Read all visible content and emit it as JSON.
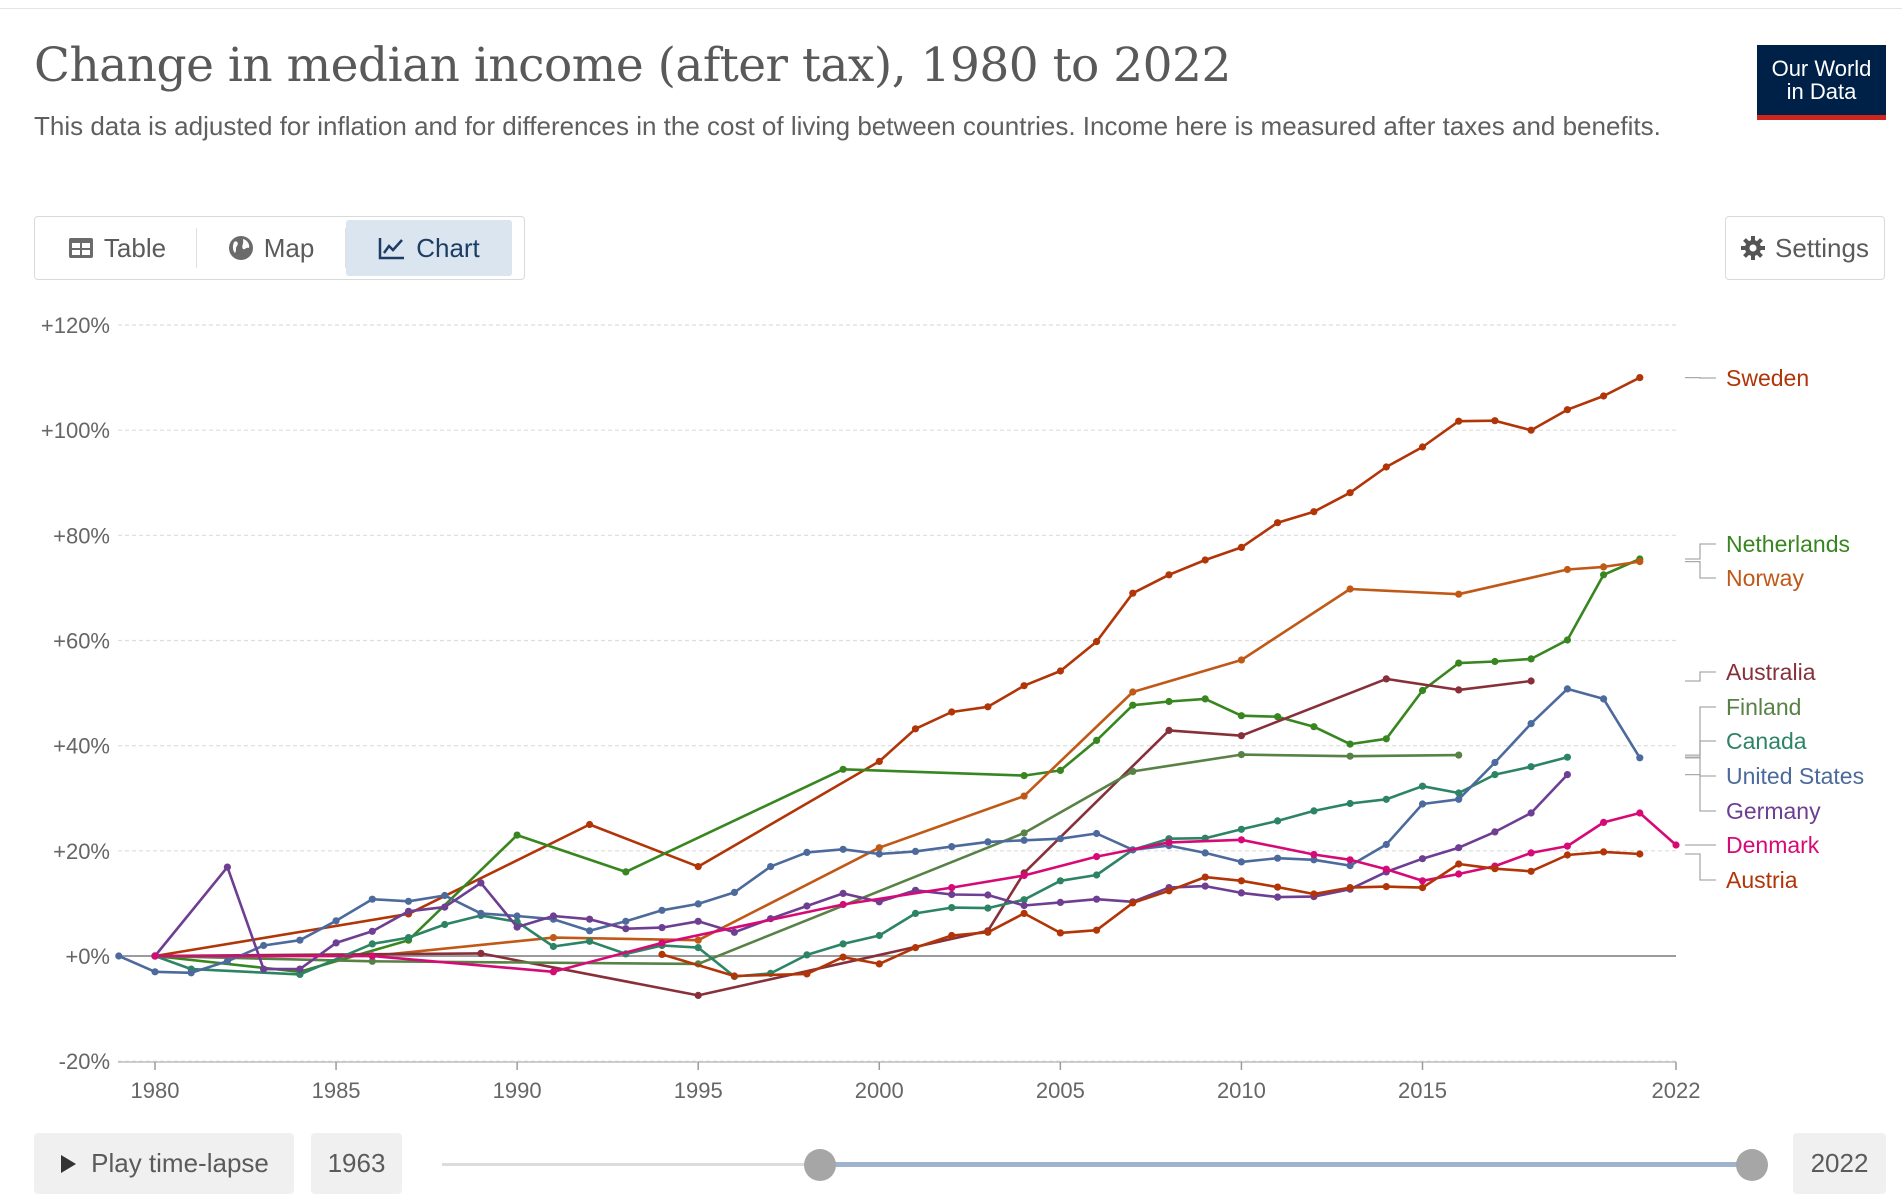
{
  "header": {
    "title": "Change in median income (after tax), 1980 to 2022",
    "subtitle": "This data is adjusted for inflation and for differences in the cost of living between countries. Income here is measured after taxes and benefits.",
    "logo_line1": "Our World",
    "logo_line2": "in Data"
  },
  "tabs": [
    {
      "label": "Table",
      "icon": "table-icon"
    },
    {
      "label": "Map",
      "icon": "globe-icon"
    },
    {
      "label": "Chart",
      "icon": "line-chart-icon",
      "active": true
    }
  ],
  "settings_label": "Settings",
  "controls": {
    "play_label": "Play time-lapse",
    "start_year": "1963",
    "end_year": "2022"
  },
  "colors": {
    "Sweden": "#b13507",
    "Netherlands": "#38861f",
    "Norway": "#c05917",
    "Australia": "#883039",
    "Finland": "#578145",
    "Canada": "#2c8465",
    "United States": "#4c6a9c",
    "Germany": "#6d3e91",
    "Denmark": "#d60a77",
    "Austria": "#b13507"
  },
  "chart_data": {
    "type": "line",
    "title": "Change in median income (after tax), 1980 to 2022",
    "ylim": [
      -20,
      120
    ],
    "xlim": [
      1980,
      2022
    ],
    "y_ticks": [
      -20,
      0,
      20,
      40,
      60,
      80,
      100,
      120
    ],
    "y_tick_labels": [
      "-20%",
      "+0%",
      "+20%",
      "+40%",
      "+60%",
      "+80%",
      "+100%",
      "+120%"
    ],
    "x_ticks": [
      1980,
      1985,
      1990,
      1995,
      2000,
      2005,
      2010,
      2015,
      2022
    ],
    "x_tick_labels": [
      "1980",
      "1985",
      "1990",
      "1995",
      "2000",
      "2005",
      "2010",
      "2015",
      "2022"
    ],
    "grid": "horizontal",
    "legend": "right",
    "series": [
      {
        "name": "Sweden",
        "points": [
          [
            1980,
            0
          ],
          [
            1987,
            8
          ],
          [
            1992,
            25
          ],
          [
            1995,
            17
          ],
          [
            2000,
            37
          ],
          [
            2001,
            43.2
          ],
          [
            2002,
            46.4
          ],
          [
            2003,
            47.4
          ],
          [
            2004,
            51.4
          ],
          [
            2005,
            54.2
          ],
          [
            2006,
            59.8
          ],
          [
            2007,
            69
          ],
          [
            2008,
            72.5
          ],
          [
            2009,
            75.3
          ],
          [
            2010,
            77.7
          ],
          [
            2011,
            82.4
          ],
          [
            2012,
            84.5
          ],
          [
            2013,
            88.1
          ],
          [
            2014,
            93
          ],
          [
            2015,
            96.8
          ],
          [
            2016,
            101.7
          ],
          [
            2017,
            101.8
          ],
          [
            2018,
            100
          ],
          [
            2019,
            103.9
          ],
          [
            2020,
            106.5
          ],
          [
            2021,
            110
          ]
        ]
      },
      {
        "name": "Netherlands",
        "points": [
          [
            1980,
            0
          ],
          [
            1984,
            -3
          ],
          [
            1987,
            3
          ],
          [
            1990,
            23
          ],
          [
            1993,
            16
          ],
          [
            1999,
            35.5
          ],
          [
            2004,
            34.3
          ],
          [
            2005,
            35.3
          ],
          [
            2006,
            41
          ],
          [
            2007,
            47.7
          ],
          [
            2008,
            48.4
          ],
          [
            2009,
            48.9
          ],
          [
            2010,
            45.7
          ],
          [
            2011,
            45.5
          ],
          [
            2012,
            43.6
          ],
          [
            2013,
            40.3
          ],
          [
            2014,
            41.3
          ],
          [
            2015,
            50.5
          ],
          [
            2016,
            55.7
          ],
          [
            2017,
            56
          ],
          [
            2018,
            56.5
          ],
          [
            2019,
            60.1
          ],
          [
            2020,
            72.5
          ],
          [
            2021,
            75.5
          ]
        ]
      },
      {
        "name": "Norway",
        "points": [
          [
            1980,
            0
          ],
          [
            1986,
            0
          ],
          [
            1991,
            3.5
          ],
          [
            1995,
            3
          ],
          [
            2000,
            20.6
          ],
          [
            2004,
            30.4
          ],
          [
            2007,
            50.2
          ],
          [
            2010,
            56.3
          ],
          [
            2013,
            69.8
          ],
          [
            2016,
            68.8
          ],
          [
            2019,
            73.5
          ],
          [
            2020,
            74
          ],
          [
            2021,
            75
          ]
        ]
      },
      {
        "name": "Australia",
        "points": [
          [
            1980,
            0
          ],
          [
            1989,
            0.5
          ],
          [
            1995,
            -7.5
          ],
          [
            2003,
            4.8
          ],
          [
            2004,
            15.8
          ],
          [
            2008,
            42.9
          ],
          [
            2010,
            41.9
          ],
          [
            2014,
            52.7
          ],
          [
            2016,
            50.6
          ],
          [
            2018,
            52.3
          ]
        ]
      },
      {
        "name": "Finland",
        "points": [
          [
            1980,
            0
          ],
          [
            1986,
            -1
          ],
          [
            1995,
            -1.5
          ],
          [
            2004,
            23.4
          ],
          [
            2007,
            35.1
          ],
          [
            2010,
            38.3
          ],
          [
            2013,
            38
          ],
          [
            2016,
            38.2
          ]
        ]
      },
      {
        "name": "Canada",
        "points": [
          [
            1980,
            0
          ],
          [
            1981,
            -2.5
          ],
          [
            1984,
            -3.5
          ],
          [
            1986,
            2.3
          ],
          [
            1987,
            3.5
          ],
          [
            1988,
            6
          ],
          [
            1989,
            7.7
          ],
          [
            1990,
            6.5
          ],
          [
            1991,
            1.8
          ],
          [
            1992,
            2.8
          ],
          [
            1993,
            0.4
          ],
          [
            1994,
            2
          ],
          [
            1995,
            1.6
          ],
          [
            1996,
            -3.9
          ],
          [
            1997,
            -3.3
          ],
          [
            1998,
            0.2
          ],
          [
            1999,
            2.3
          ],
          [
            2000,
            3.9
          ],
          [
            2001,
            8.1
          ],
          [
            2002,
            9.2
          ],
          [
            2003,
            9.1
          ],
          [
            2004,
            10.7
          ],
          [
            2005,
            14.3
          ],
          [
            2006,
            15.4
          ],
          [
            2007,
            20.2
          ],
          [
            2008,
            22.3
          ],
          [
            2009,
            22.4
          ],
          [
            2010,
            24.1
          ],
          [
            2011,
            25.7
          ],
          [
            2012,
            27.6
          ],
          [
            2013,
            29
          ],
          [
            2014,
            29.8
          ],
          [
            2015,
            32.3
          ],
          [
            2016,
            31
          ],
          [
            2017,
            34.5
          ],
          [
            2018,
            36
          ],
          [
            2019,
            37.8
          ]
        ]
      },
      {
        "name": "United States",
        "points": [
          [
            1979,
            0
          ],
          [
            1980,
            -3
          ],
          [
            1981,
            -3.2
          ],
          [
            1982,
            -1
          ],
          [
            1983,
            2
          ],
          [
            1984,
            3
          ],
          [
            1985,
            6.7
          ],
          [
            1986,
            10.8
          ],
          [
            1987,
            10.4
          ],
          [
            1988,
            11.5
          ],
          [
            1989,
            8.1
          ],
          [
            1990,
            7.6
          ],
          [
            1991,
            7
          ],
          [
            1992,
            4.8
          ],
          [
            1993,
            6.6
          ],
          [
            1994,
            8.7
          ],
          [
            1995,
            9.9
          ],
          [
            1996,
            12.1
          ],
          [
            1997,
            17
          ],
          [
            1998,
            19.7
          ],
          [
            1999,
            20.3
          ],
          [
            2000,
            19.4
          ],
          [
            2001,
            19.9
          ],
          [
            2002,
            20.8
          ],
          [
            2003,
            21.7
          ],
          [
            2004,
            22
          ],
          [
            2005,
            22.3
          ],
          [
            2006,
            23.3
          ],
          [
            2007,
            20.2
          ],
          [
            2008,
            21
          ],
          [
            2009,
            19.6
          ],
          [
            2010,
            17.9
          ],
          [
            2011,
            18.6
          ],
          [
            2012,
            18.3
          ],
          [
            2013,
            17.2
          ],
          [
            2014,
            21.2
          ],
          [
            2015,
            28.9
          ],
          [
            2016,
            29.8
          ],
          [
            2017,
            36.8
          ],
          [
            2018,
            44.2
          ],
          [
            2019,
            50.8
          ],
          [
            2020,
            48.9
          ],
          [
            2021,
            37.7
          ]
        ]
      },
      {
        "name": "Germany",
        "points": [
          [
            1980,
            0
          ],
          [
            1982,
            16.9
          ],
          [
            1983,
            -2.5
          ],
          [
            1984,
            -2.5
          ],
          [
            1985,
            2.5
          ],
          [
            1986,
            4.7
          ],
          [
            1987,
            8.5
          ],
          [
            1988,
            9.3
          ],
          [
            1989,
            13.9
          ],
          [
            1990,
            5.5
          ],
          [
            1991,
            7.6
          ],
          [
            1992,
            7
          ],
          [
            1993,
            5.2
          ],
          [
            1994,
            5.4
          ],
          [
            1995,
            6.6
          ],
          [
            1996,
            4.5
          ],
          [
            1997,
            7.1
          ],
          [
            1998,
            9.5
          ],
          [
            1999,
            11.9
          ],
          [
            2000,
            10.3
          ],
          [
            2001,
            12.5
          ],
          [
            2002,
            11.7
          ],
          [
            2003,
            11.6
          ],
          [
            2004,
            9.6
          ],
          [
            2005,
            10.2
          ],
          [
            2006,
            10.8
          ],
          [
            2007,
            10.3
          ],
          [
            2008,
            13
          ],
          [
            2009,
            13.3
          ],
          [
            2010,
            12
          ],
          [
            2011,
            11.2
          ],
          [
            2012,
            11.3
          ],
          [
            2013,
            12.7
          ],
          [
            2014,
            16
          ],
          [
            2015,
            18.5
          ],
          [
            2016,
            20.6
          ],
          [
            2017,
            23.6
          ],
          [
            2018,
            27.2
          ],
          [
            2019,
            34.5
          ]
        ]
      },
      {
        "name": "Denmark",
        "points": [
          [
            1980,
            0
          ],
          [
            1986,
            0
          ],
          [
            1991,
            -3
          ],
          [
            1994,
            2.5
          ],
          [
            1999,
            9.8
          ],
          [
            2002,
            13
          ],
          [
            2004,
            15.3
          ],
          [
            2006,
            18.9
          ],
          [
            2008,
            21.6
          ],
          [
            2010,
            22.1
          ],
          [
            2012,
            19.3
          ],
          [
            2013,
            18.3
          ],
          [
            2014,
            16.5
          ],
          [
            2015,
            14.3
          ],
          [
            2016,
            15.6
          ],
          [
            2017,
            17.1
          ],
          [
            2018,
            19.6
          ],
          [
            2019,
            20.9
          ],
          [
            2020,
            25.4
          ],
          [
            2021,
            27.2
          ],
          [
            2022,
            21.1
          ]
        ]
      },
      {
        "name": "Austria",
        "points": [
          [
            1994,
            0.3
          ],
          [
            1996,
            -3.8
          ],
          [
            1998,
            -3.4
          ],
          [
            1999,
            -0.2
          ],
          [
            2000,
            -1.5
          ],
          [
            2001,
            1.6
          ],
          [
            2002,
            3.9
          ],
          [
            2003,
            4.5
          ],
          [
            2004,
            8.1
          ],
          [
            2005,
            4.4
          ],
          [
            2006,
            4.9
          ],
          [
            2007,
            10.1
          ],
          [
            2008,
            12.4
          ],
          [
            2009,
            15
          ],
          [
            2010,
            14.3
          ],
          [
            2011,
            13.1
          ],
          [
            2012,
            11.8
          ],
          [
            2013,
            13
          ],
          [
            2014,
            13.2
          ],
          [
            2015,
            13
          ],
          [
            2016,
            17.5
          ],
          [
            2017,
            16.6
          ],
          [
            2018,
            16.1
          ],
          [
            2019,
            19.2
          ],
          [
            2020,
            19.8
          ],
          [
            2021,
            19.4
          ]
        ]
      }
    ]
  }
}
